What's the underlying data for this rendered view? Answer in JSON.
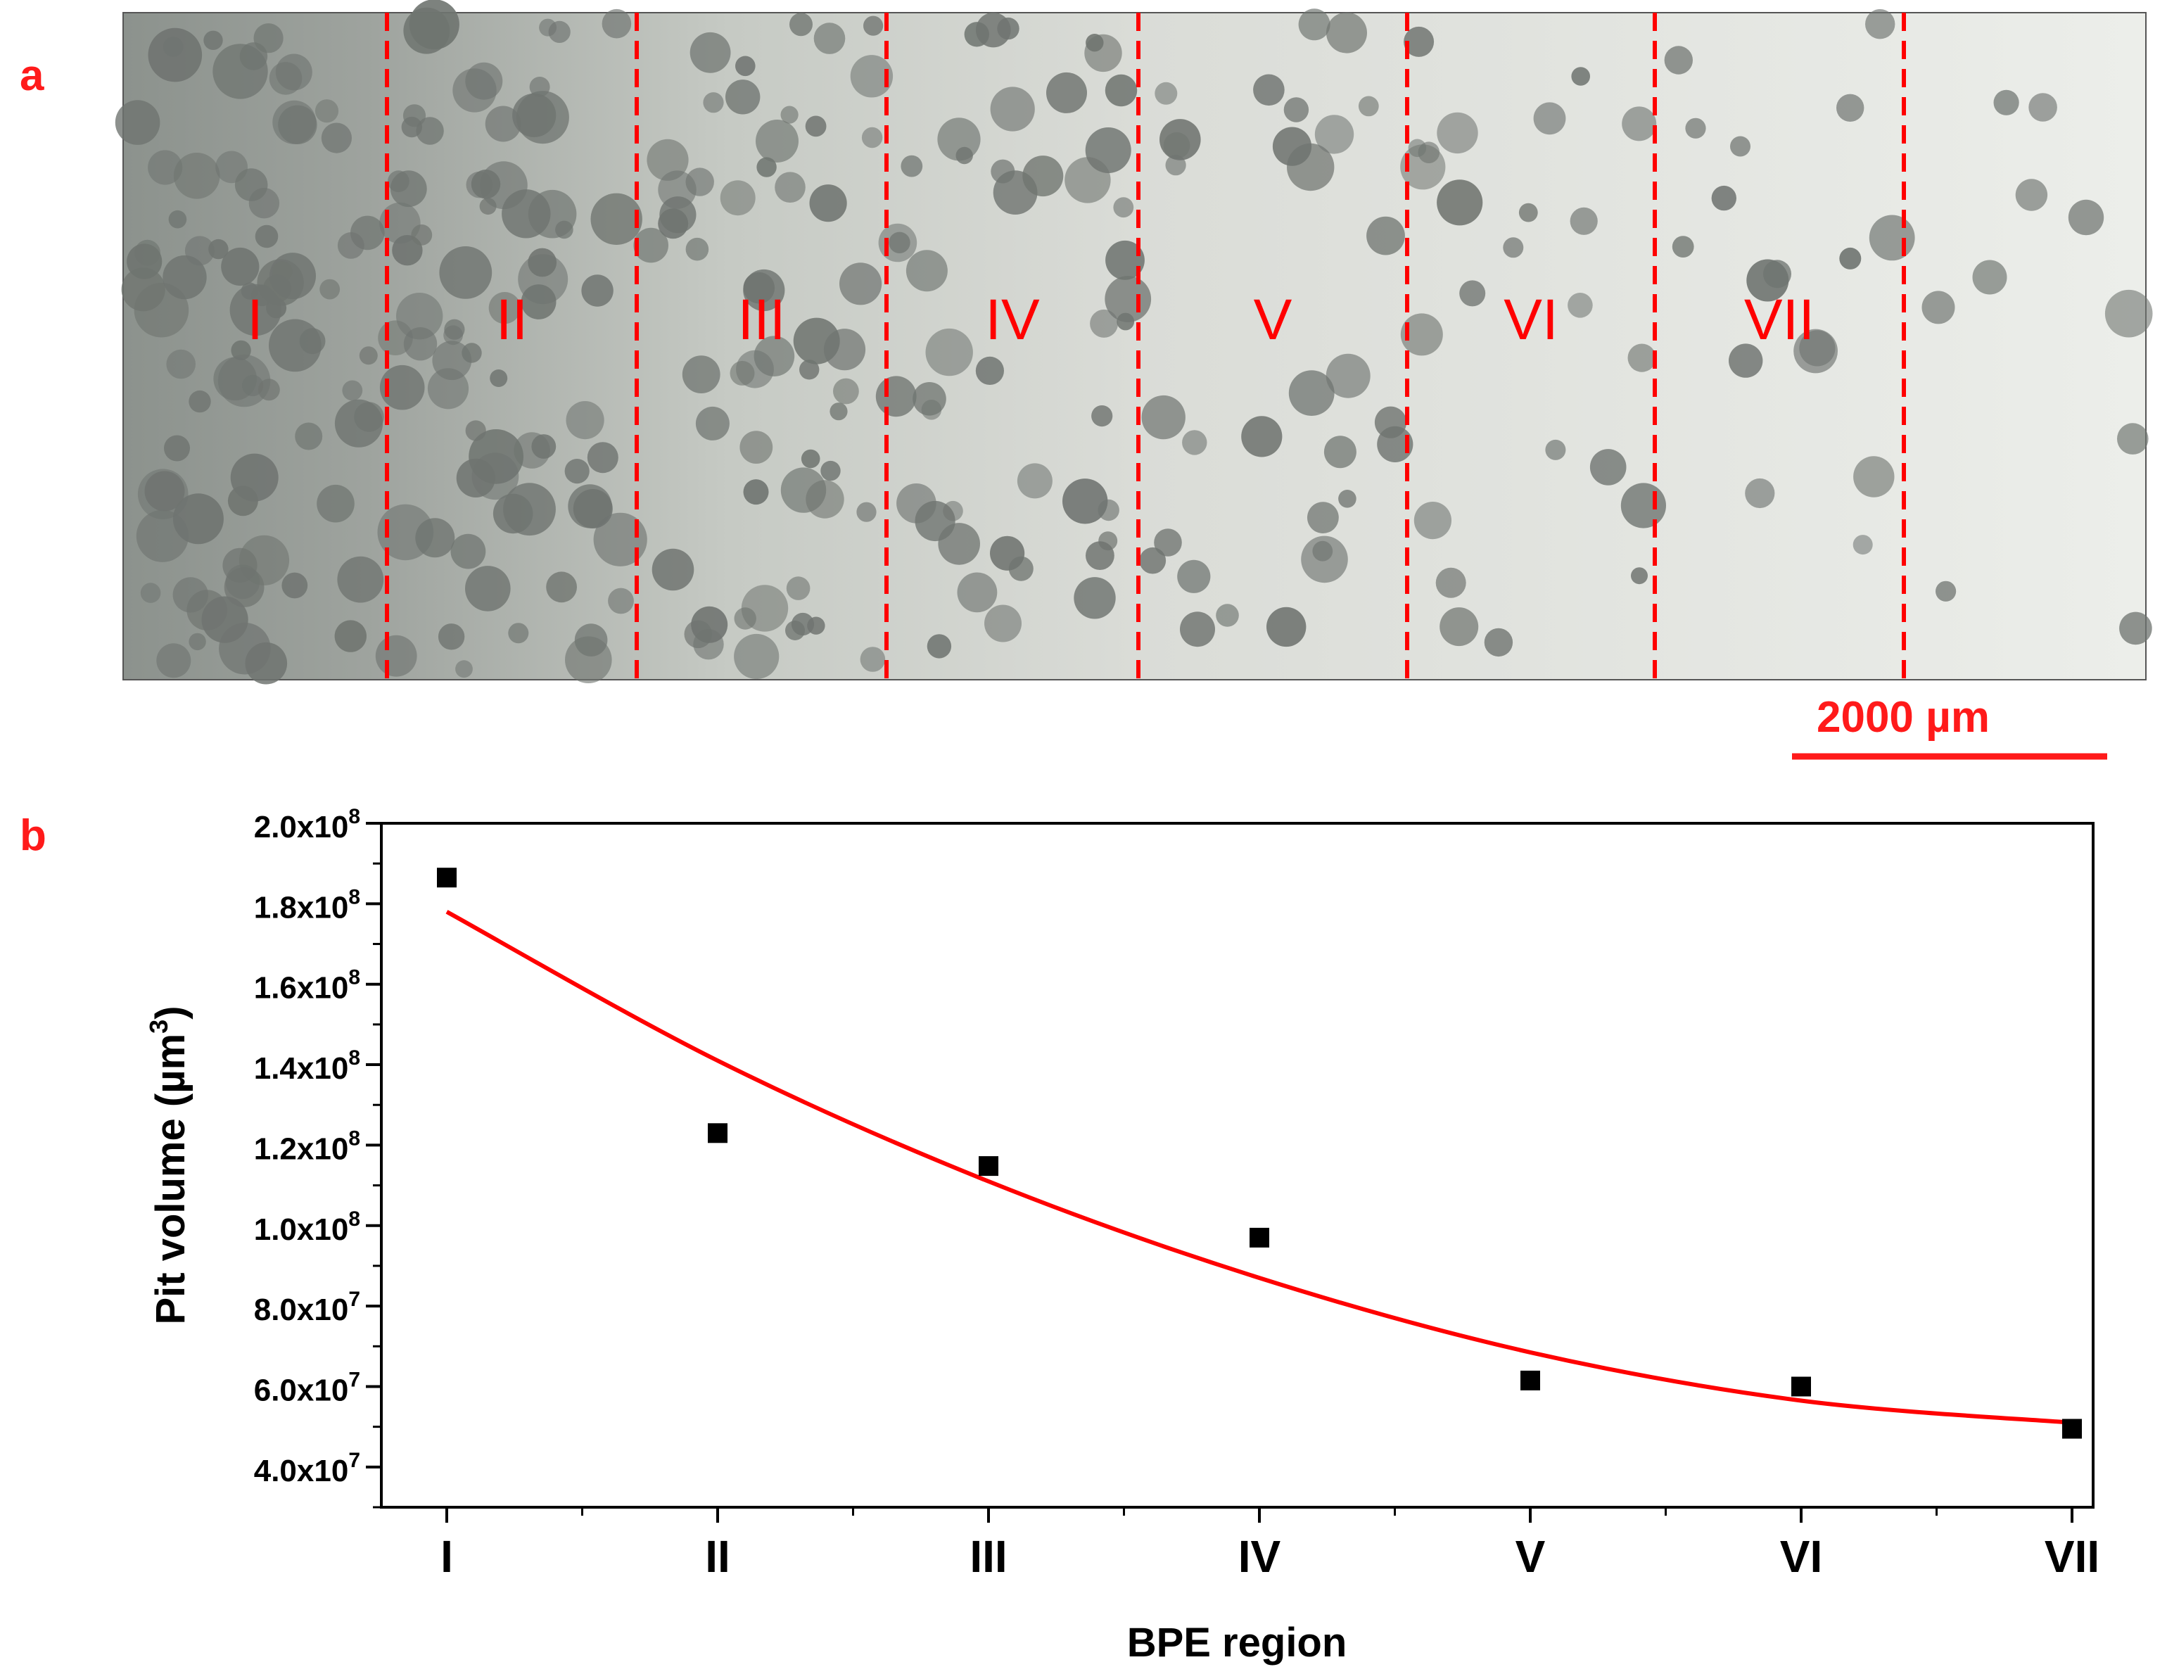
{
  "panel_a": {
    "label": "a",
    "region_labels": [
      "I",
      "II",
      "III",
      "IV",
      "V",
      "VI",
      "VII"
    ],
    "scale_bar": {
      "label": "2000 µm"
    }
  },
  "panel_b": {
    "label": "b"
  },
  "colors": {
    "accent": "#ff0000",
    "marker": "#000000",
    "image_background": "#d8dcd6",
    "pit": "#6f7470"
  },
  "icons": {
    "point_marker": "filled-square"
  },
  "chart_data": {
    "type": "scatter",
    "categories": [
      "I",
      "II",
      "III",
      "IV",
      "V",
      "VI",
      "VII"
    ],
    "series": [
      {
        "type": "scatter",
        "marker": "square",
        "values": [
          186500000.0,
          123000000.0,
          114800000.0,
          97000000.0,
          61500000.0,
          60000000.0,
          49500000.0
        ]
      },
      {
        "type": "line",
        "style": "fit-curve",
        "values": [
          178000000.0,
          141000000.0,
          111000000.0,
          87000000.0,
          68500000.0,
          56500000.0,
          51000000.0
        ]
      }
    ],
    "xlabel": "BPE region",
    "ylabel": "Pit volume (µm",
    "ylabel_superscript": "3",
    "ylabel_suffix": ")",
    "ylim": [
      30000000.0,
      200000000.0
    ],
    "yticks": [
      40000000.0,
      60000000.0,
      80000000.0,
      100000000.0,
      120000000.0,
      140000000.0,
      160000000.0,
      180000000.0,
      200000000.0
    ],
    "ytick_labels": [
      {
        "base": "4.0x10",
        "exp": "7"
      },
      {
        "base": "6.0x10",
        "exp": "7"
      },
      {
        "base": "8.0x10",
        "exp": "7"
      },
      {
        "base": "1.0x10",
        "exp": "8"
      },
      {
        "base": "1.2x10",
        "exp": "8"
      },
      {
        "base": "1.4x10",
        "exp": "8"
      },
      {
        "base": "1.6x10",
        "exp": "8"
      },
      {
        "base": "1.8x10",
        "exp": "8"
      },
      {
        "base": "2.0x10",
        "exp": "8"
      }
    ],
    "grid": false,
    "legend": "none"
  }
}
